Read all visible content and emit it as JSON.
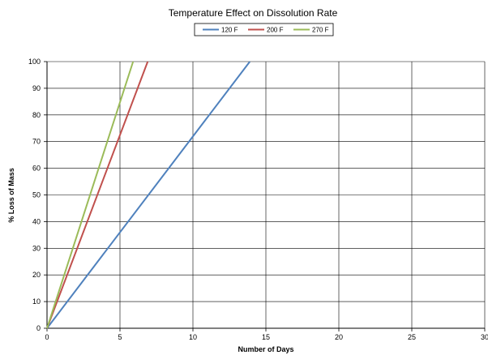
{
  "chart_data": {
    "type": "line",
    "title": "Temperature Effect on Dissolution Rate",
    "xlabel": "Number of Days",
    "ylabel": "% Loss of Mass",
    "xlim": [
      0,
      30
    ],
    "ylim": [
      0,
      100
    ],
    "xticks": [
      0,
      5,
      10,
      15,
      20,
      25,
      30
    ],
    "yticks": [
      0,
      10,
      20,
      30,
      40,
      50,
      60,
      70,
      80,
      90,
      100
    ],
    "grid": true,
    "legend_position": "top-center",
    "series": [
      {
        "name": "120 F",
        "color": "#4F81BD",
        "x": [
          0,
          13.9
        ],
        "y": [
          0,
          100
        ]
      },
      {
        "name": "200 F",
        "color": "#C0504D",
        "x": [
          0,
          6.9
        ],
        "y": [
          0,
          100
        ]
      },
      {
        "name": "270 F",
        "color": "#9BBB59",
        "x": [
          0,
          5.9
        ],
        "y": [
          0,
          100
        ]
      }
    ]
  }
}
